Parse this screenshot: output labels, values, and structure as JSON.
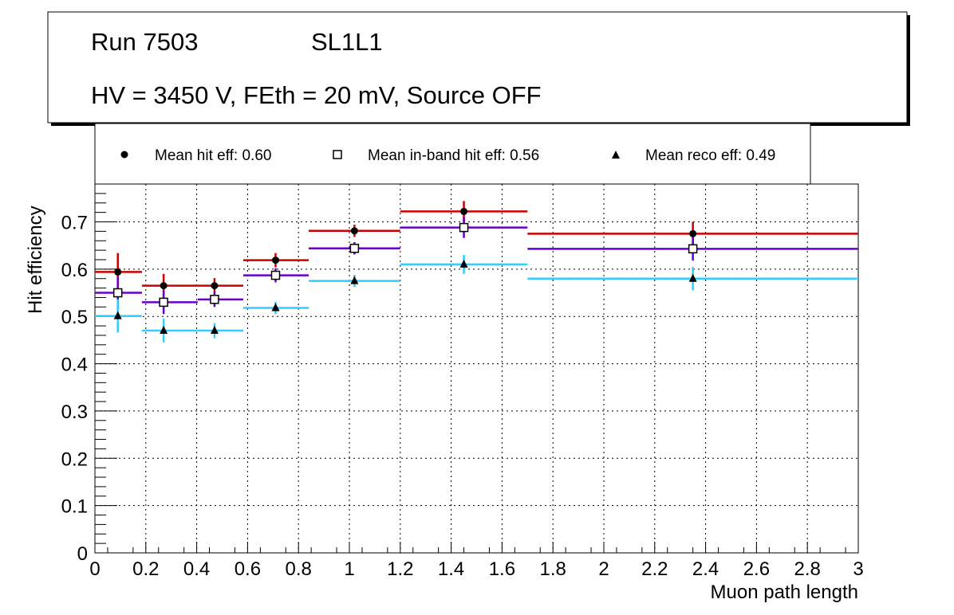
{
  "title_box": {
    "line1_run": "Run 7503",
    "line1_layer": "SL1L1",
    "line2": "HV = 3450 V, FEth = 20 mV, Source OFF"
  },
  "chart_data": {
    "type": "scatter",
    "xlabel": "Muon path length",
    "ylabel": "Hit efficiency",
    "xlim": [
      0,
      3
    ],
    "ylim": [
      0,
      0.78
    ],
    "grid": true,
    "legend_position": "top",
    "xticks": [
      "0",
      "0.2",
      "0.4",
      "0.6",
      "0.8",
      "1",
      "1.2",
      "1.4",
      "1.6",
      "1.8",
      "2",
      "2.2",
      "2.4",
      "2.6",
      "2.8",
      "3"
    ],
    "yticks": [
      "0",
      "0.1",
      "0.2",
      "0.3",
      "0.4",
      "0.5",
      "0.6",
      "0.7"
    ],
    "bin_edges": [
      0,
      0.185,
      0.404,
      0.583,
      0.84,
      1.2,
      1.7,
      3.0
    ],
    "x": [
      0.09,
      0.27,
      0.47,
      0.71,
      1.02,
      1.45,
      2.35
    ],
    "series": [
      {
        "name": "Mean hit  eff: 0.60",
        "marker": "circle",
        "color": "#cc0000",
        "values": [
          0.594,
          0.565,
          0.565,
          0.619,
          0.681,
          0.722,
          0.675
        ],
        "errors": [
          0.04,
          0.025,
          0.016,
          0.015,
          0.013,
          0.022,
          0.025
        ]
      },
      {
        "name": "Mean in-band hit eff: 0.56",
        "marker": "open-square",
        "color": "#6600cc",
        "values": [
          0.55,
          0.53,
          0.536,
          0.587,
          0.644,
          0.688,
          0.643
        ],
        "errors": [
          0.035,
          0.025,
          0.016,
          0.015,
          0.013,
          0.022,
          0.025
        ]
      },
      {
        "name": "Mean reco eff: 0.49",
        "marker": "triangle",
        "color": "#33ccff",
        "values": [
          0.501,
          0.47,
          0.47,
          0.518,
          0.575,
          0.61,
          0.58
        ],
        "errors": [
          0.035,
          0.025,
          0.016,
          0.013,
          0.013,
          0.02,
          0.025
        ]
      }
    ]
  }
}
